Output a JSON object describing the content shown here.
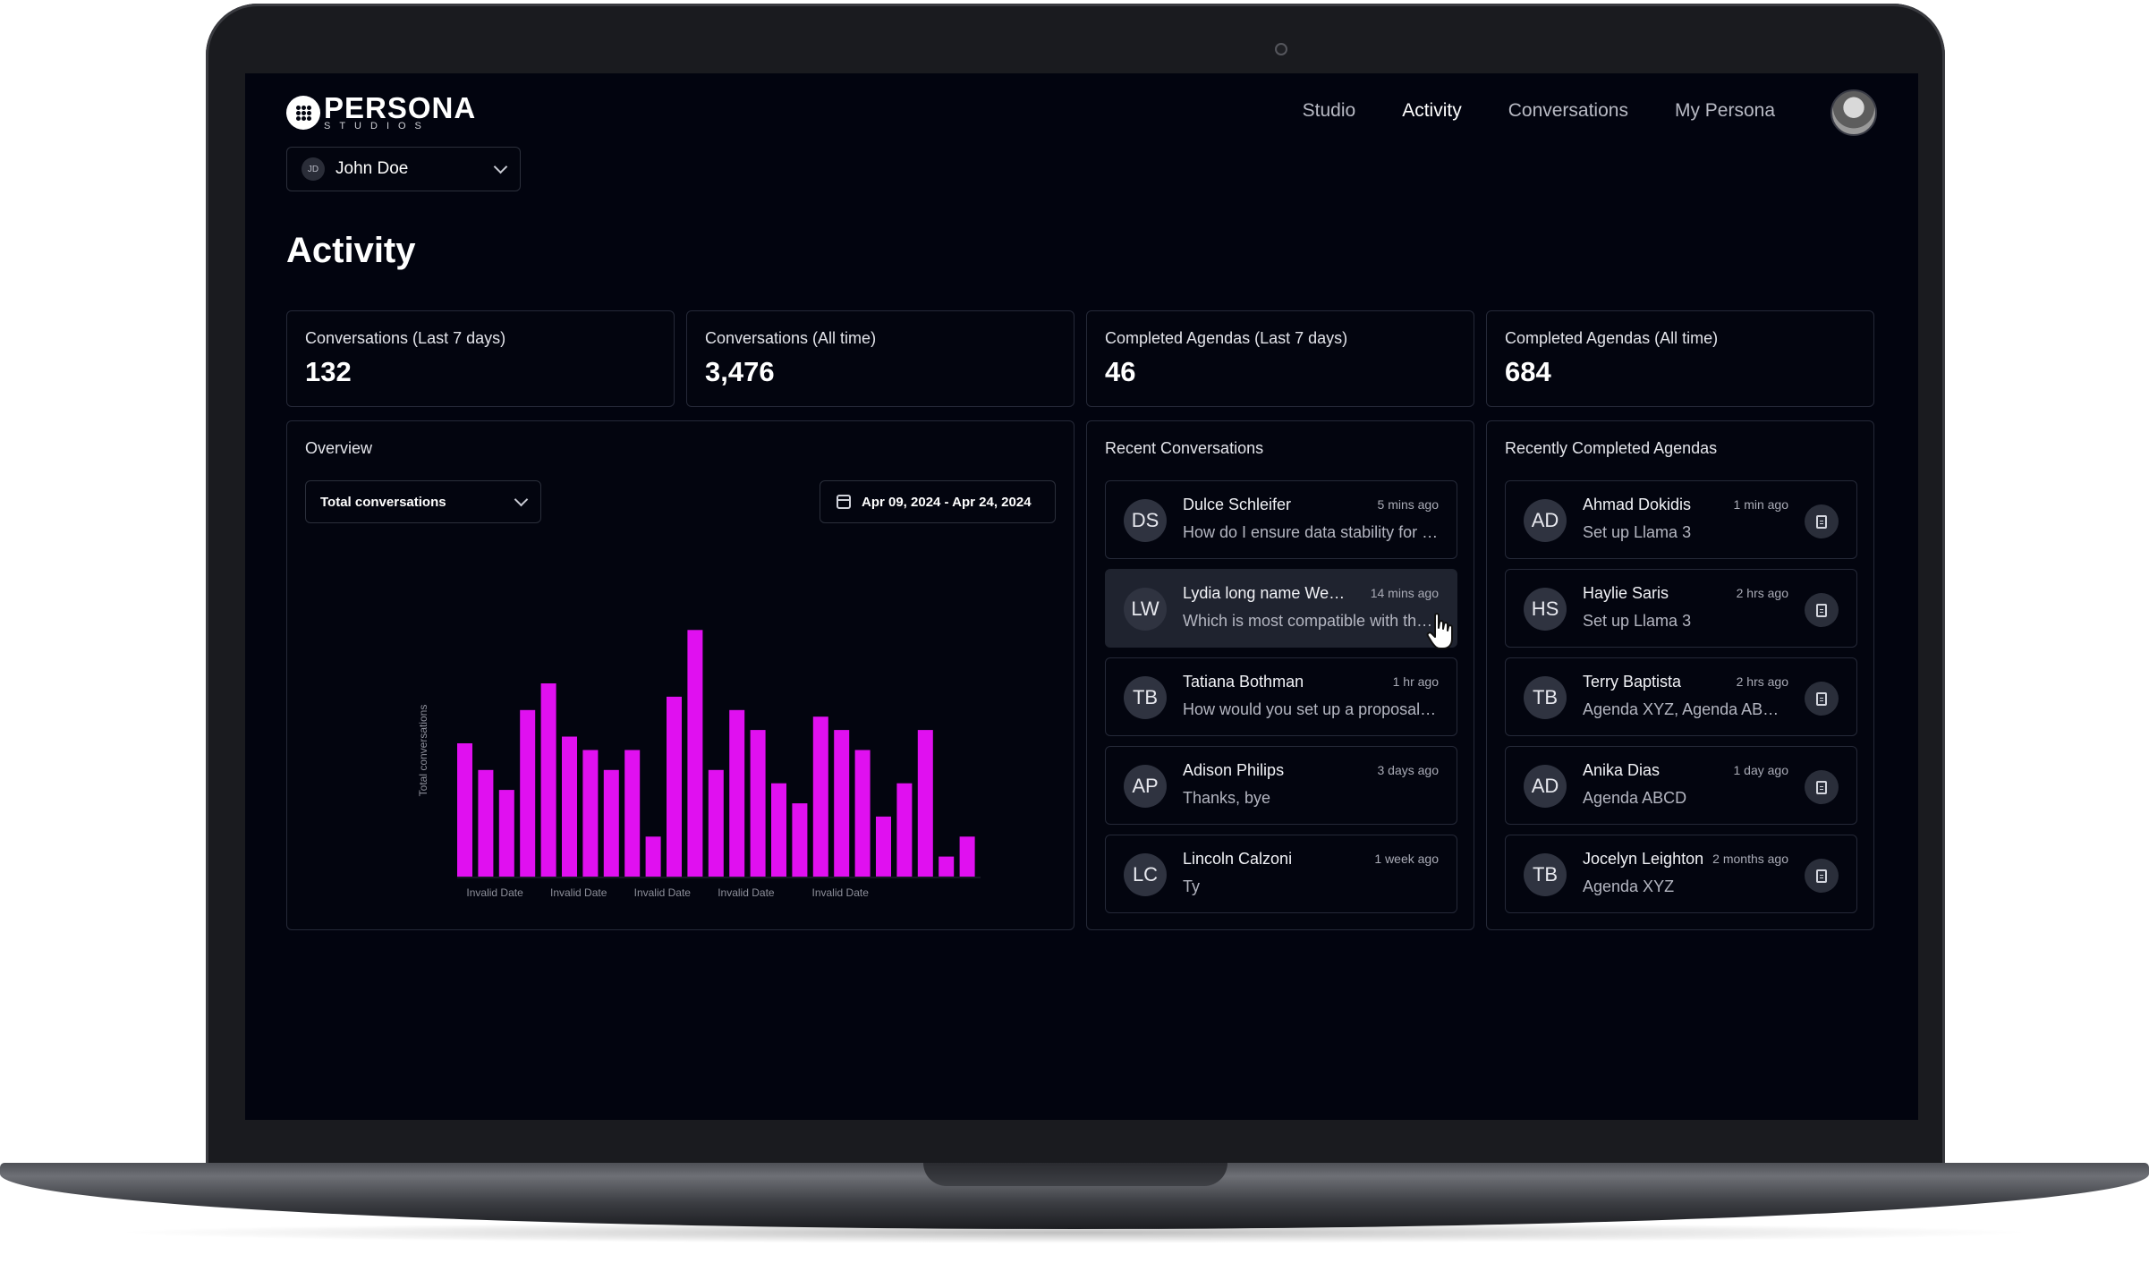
{
  "brand": {
    "name": "PERSONA",
    "tagline": "STUDIOS"
  },
  "nav": {
    "items": [
      {
        "label": "Studio",
        "active": false
      },
      {
        "label": "Activity",
        "active": true
      },
      {
        "label": "Conversations",
        "active": false
      },
      {
        "label": "My Persona",
        "active": false
      }
    ]
  },
  "user_select": {
    "initials": "JD",
    "name": "John Doe"
  },
  "page_title": "Activity",
  "stats": [
    {
      "label": "Conversations (Last 7 days)",
      "value": "132"
    },
    {
      "label": "Conversations (All time)",
      "value": "3,476"
    },
    {
      "label": "Completed Agendas (Last 7 days)",
      "value": "46"
    },
    {
      "label": "Completed Agendas (All time)",
      "value": "684"
    }
  ],
  "overview": {
    "title": "Overview",
    "metric": "Total conversations",
    "date_range": "Apr 09, 2024 - Apr 24, 2024"
  },
  "chart_data": {
    "type": "bar",
    "ylabel": "Total conversations",
    "xlabel": "",
    "tick_labels": [
      "Invalid Date",
      "Invalid Date",
      "Invalid Date",
      "Invalid Date",
      "Invalid Date"
    ],
    "values": [
      20,
      16,
      13,
      25,
      29,
      21,
      19,
      16,
      19,
      6,
      27,
      37,
      16,
      25,
      22,
      14,
      11,
      24,
      22,
      19,
      9,
      14,
      22,
      3,
      6
    ],
    "ylim": [
      0,
      40
    ],
    "color": "#e010f0",
    "grid": false
  },
  "recent_conversations": {
    "title": "Recent Conversations",
    "items": [
      {
        "initials": "DS",
        "name": "Dulce Schleifer",
        "time": "5 mins ago",
        "message": "How do I ensure data stability for my project?"
      },
      {
        "initials": "LW",
        "name": "Lydia long name Westervelt",
        "time": "14 mins ago",
        "message": "Which is most compatible with the new version?"
      },
      {
        "initials": "TB",
        "name": "Tatiana Bothman",
        "time": "1 hr ago",
        "message": "How would you set up a proposal for this?"
      },
      {
        "initials": "AP",
        "name": "Adison Philips",
        "time": "3 days ago",
        "message": "Thanks, bye"
      },
      {
        "initials": "LC",
        "name": "Lincoln Calzoni",
        "time": "1 week ago",
        "message": "Ty"
      }
    ]
  },
  "recent_agendas": {
    "title": "Recently Completed Agendas",
    "items": [
      {
        "initials": "AD",
        "name": "Ahmad Dokidis",
        "time": "1 min ago",
        "agenda": "Set up Llama 3"
      },
      {
        "initials": "HS",
        "name": "Haylie Saris",
        "time": "2 hrs ago",
        "agenda": "Set up Llama 3"
      },
      {
        "initials": "TB",
        "name": "Terry Baptista",
        "time": "2 hrs ago",
        "agenda": "Agenda XYZ, Agenda ABCD"
      },
      {
        "initials": "AD",
        "name": "Anika Dias",
        "time": "1 day ago",
        "agenda": "Agenda ABCD"
      },
      {
        "initials": "TB",
        "name": "Jocelyn Leighton",
        "time": "2 months ago",
        "agenda": "Agenda XYZ"
      }
    ]
  }
}
